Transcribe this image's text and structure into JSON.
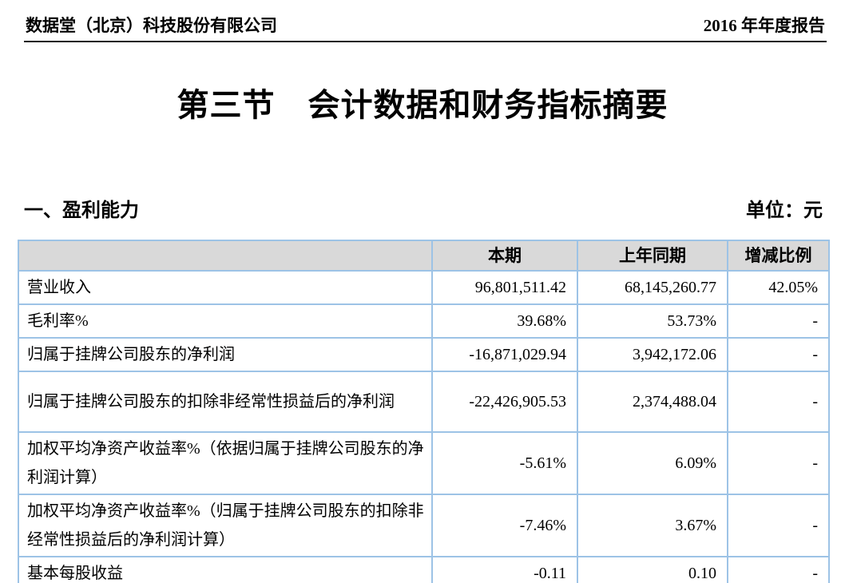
{
  "page_header": {
    "company": "数据堂（北京）科技股份有限公司",
    "report": "2016 年年度报告"
  },
  "title": "第三节　会计数据和财务指标摘要",
  "section": {
    "heading": "一、盈利能力",
    "unit_label": "单位：元"
  },
  "table": {
    "columns": [
      "",
      "本期",
      "上年同期",
      "增减比例"
    ],
    "rows": [
      {
        "label": "营业收入",
        "current": "96,801,511.42",
        "prior": "68,145,260.77",
        "change": "42.05%"
      },
      {
        "label": "毛利率%",
        "current": "39.68%",
        "prior": "53.73%",
        "change": "-"
      },
      {
        "label": "归属于挂牌公司股东的净利润",
        "current": "-16,871,029.94",
        "prior": "3,942,172.06",
        "change": "-"
      },
      {
        "label": "归属于挂牌公司股东的扣除非经常性损益后的净利润",
        "current": "-22,426,905.53",
        "prior": "2,374,488.04",
        "change": "-"
      },
      {
        "label": "加权平均净资产收益率%（依据归属于挂牌公司股东的净利润计算）",
        "current": "-5.61%",
        "prior": "6.09%",
        "change": "-"
      },
      {
        "label": "加权平均净资产收益率%（归属于挂牌公司股东的扣除非经常性损益后的净利润计算）",
        "current": "-7.46%",
        "prior": "3.67%",
        "change": "-"
      },
      {
        "label": "基本每股收益",
        "current": "-0.11",
        "prior": "0.10",
        "change": "-"
      }
    ]
  },
  "colors": {
    "table_border": "#9dc3e6",
    "header_fill": "#d9d9d9",
    "rule": "#1c1c1c"
  }
}
